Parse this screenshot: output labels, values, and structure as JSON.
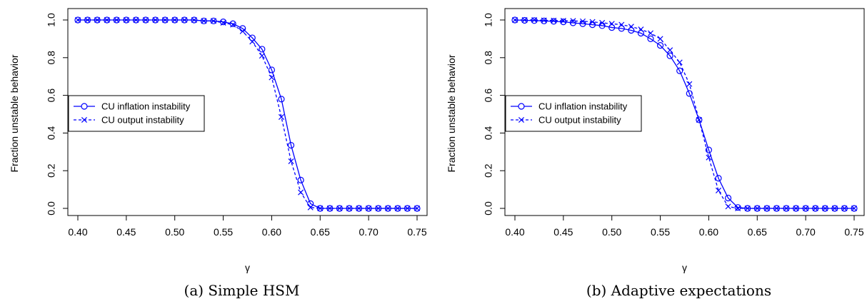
{
  "chart_data": [
    {
      "type": "line",
      "caption": "(a) Simple HSM",
      "xlabel": "γ",
      "ylabel": "Fraction unstable behavior",
      "xlim": [
        0.4,
        0.75
      ],
      "ylim": [
        0.0,
        1.0
      ],
      "xticks": [
        "0.40",
        "0.45",
        "0.50",
        "0.55",
        "0.60",
        "0.65",
        "0.70",
        "0.75"
      ],
      "yticks": [
        "0.0",
        "0.2",
        "0.4",
        "0.6",
        "0.8",
        "1.0"
      ],
      "grid": false,
      "legend_position": "center-left",
      "x": [
        0.4,
        0.41,
        0.42,
        0.43,
        0.44,
        0.45,
        0.46,
        0.47,
        0.48,
        0.49,
        0.5,
        0.51,
        0.52,
        0.53,
        0.54,
        0.55,
        0.56,
        0.57,
        0.58,
        0.59,
        0.6,
        0.61,
        0.62,
        0.63,
        0.64,
        0.65,
        0.66,
        0.67,
        0.68,
        0.69,
        0.7,
        0.71,
        0.72,
        0.73,
        0.74,
        0.75
      ],
      "series": [
        {
          "name": "CU inflation instability",
          "style": "solid",
          "marker": "circle",
          "color": "#0000ff",
          "values": [
            1.0,
            1.0,
            1.0,
            1.0,
            1.0,
            1.0,
            1.0,
            1.0,
            1.0,
            1.0,
            1.0,
            1.0,
            1.0,
            0.995,
            0.995,
            0.99,
            0.98,
            0.955,
            0.905,
            0.845,
            0.735,
            0.58,
            0.335,
            0.15,
            0.025,
            0.0,
            0.0,
            0.0,
            0.0,
            0.0,
            0.0,
            0.0,
            0.0,
            0.0,
            0.0,
            0.0
          ]
        },
        {
          "name": "CU output instability",
          "style": "dashed",
          "marker": "x",
          "color": "#0000ff",
          "values": [
            1.0,
            1.0,
            1.0,
            1.0,
            1.0,
            1.0,
            1.0,
            1.0,
            1.0,
            1.0,
            1.0,
            1.0,
            1.0,
            0.995,
            0.995,
            0.985,
            0.975,
            0.94,
            0.885,
            0.81,
            0.695,
            0.485,
            0.25,
            0.085,
            0.005,
            0.0,
            0.0,
            0.0,
            0.0,
            0.0,
            0.0,
            0.0,
            0.0,
            0.0,
            0.0,
            0.0
          ]
        }
      ]
    },
    {
      "type": "line",
      "caption": "(b) Adaptive expectations",
      "xlabel": "γ",
      "ylabel": "Fraction unstable behavior",
      "xlim": [
        0.4,
        0.75
      ],
      "ylim": [
        0.0,
        1.0
      ],
      "xticks": [
        "0.40",
        "0.45",
        "0.50",
        "0.55",
        "0.60",
        "0.65",
        "0.70",
        "0.75"
      ],
      "yticks": [
        "0.0",
        "0.2",
        "0.4",
        "0.6",
        "0.8",
        "1.0"
      ],
      "grid": false,
      "legend_position": "center-left",
      "x": [
        0.4,
        0.41,
        0.42,
        0.43,
        0.44,
        0.45,
        0.46,
        0.47,
        0.48,
        0.49,
        0.5,
        0.51,
        0.52,
        0.53,
        0.54,
        0.55,
        0.56,
        0.57,
        0.58,
        0.59,
        0.6,
        0.61,
        0.62,
        0.63,
        0.64,
        0.65,
        0.66,
        0.67,
        0.68,
        0.69,
        0.7,
        0.71,
        0.72,
        0.73,
        0.74,
        0.75
      ],
      "series": [
        {
          "name": "CU inflation instability",
          "style": "solid",
          "marker": "circle",
          "color": "#0000ff",
          "values": [
            1.0,
            0.998,
            0.997,
            0.995,
            0.993,
            0.99,
            0.985,
            0.98,
            0.975,
            0.97,
            0.96,
            0.955,
            0.945,
            0.93,
            0.9,
            0.865,
            0.81,
            0.73,
            0.61,
            0.47,
            0.31,
            0.16,
            0.055,
            0.005,
            0.0,
            0.0,
            0.0,
            0.0,
            0.0,
            0.0,
            0.0,
            0.0,
            0.0,
            0.0,
            0.0,
            0.0
          ]
        },
        {
          "name": "CU output instability",
          "style": "dashed",
          "marker": "x",
          "color": "#0000ff",
          "values": [
            1.0,
            1.0,
            1.0,
            0.998,
            0.997,
            0.996,
            0.995,
            0.993,
            0.99,
            0.985,
            0.98,
            0.975,
            0.965,
            0.95,
            0.93,
            0.9,
            0.84,
            0.775,
            0.66,
            0.47,
            0.27,
            0.095,
            0.01,
            0.0,
            0.0,
            0.0,
            0.0,
            0.0,
            0.0,
            0.0,
            0.0,
            0.0,
            0.0,
            0.0,
            0.0,
            0.0
          ]
        }
      ]
    }
  ]
}
